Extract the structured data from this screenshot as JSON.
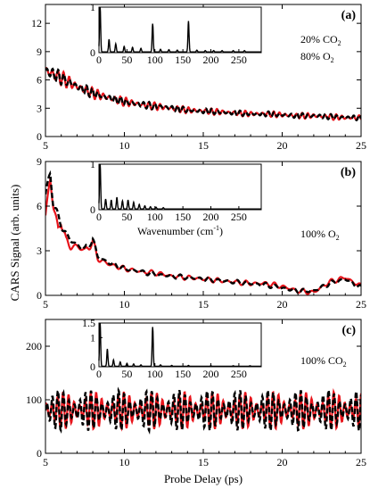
{
  "figure": {
    "xlabel": "Probe Delay (ps)",
    "ylabel": "CARS Signal (arb. units)",
    "colors": {
      "measured": "#e8141b",
      "simulated": "#000000",
      "inset": "#000000"
    }
  },
  "chart_data": [
    {
      "type": "line",
      "panel": "a",
      "panel_label": "(a)",
      "annotation_lines": [
        {
          "text": "20% CO",
          "sub": "2"
        },
        {
          "text": "80% O",
          "sub": "2"
        }
      ],
      "xlim": [
        5,
        25
      ],
      "ylim": [
        0,
        14
      ],
      "x_ticks": [
        "5",
        "10",
        "15",
        "20",
        "25"
      ],
      "y_ticks": [
        "0",
        "3",
        "6",
        "9",
        "12"
      ],
      "y_tick_values": [
        0,
        3,
        6,
        9,
        12
      ],
      "series": [
        {
          "role": "measured",
          "style": "solid-red",
          "x": [
            5,
            5.5,
            6,
            7,
            8,
            9,
            10,
            11,
            12,
            13,
            14,
            15,
            16,
            17,
            18,
            19,
            20,
            21,
            22,
            23,
            24,
            25
          ],
          "y": [
            7.0,
            6.6,
            6.2,
            5.3,
            4.6,
            4.1,
            3.7,
            3.4,
            3.2,
            3.0,
            2.8,
            2.7,
            2.6,
            2.5,
            2.4,
            2.4,
            2.3,
            2.2,
            2.2,
            2.1,
            2.0,
            2.0
          ],
          "osc_amplitude": 0.9,
          "osc_period_ps": 0.36
        },
        {
          "role": "simulated",
          "style": "dashed-black",
          "x": [
            5,
            5.5,
            6,
            7,
            8,
            9,
            10,
            11,
            12,
            13,
            14,
            15,
            16,
            17,
            18,
            19,
            20,
            21,
            22,
            23,
            24,
            25
          ],
          "y": [
            7.0,
            6.6,
            6.2,
            5.3,
            4.6,
            4.1,
            3.7,
            3.4,
            3.2,
            3.0,
            2.8,
            2.7,
            2.6,
            2.5,
            2.4,
            2.4,
            2.3,
            2.2,
            2.2,
            2.1,
            2.0,
            2.0
          ],
          "osc_amplitude": 0.8,
          "osc_period_ps": 0.36
        }
      ],
      "inset": {
        "xlim": [
          0,
          290
        ],
        "ylim": [
          0,
          1
        ],
        "x_ticks": [
          "0",
          "50",
          "100",
          "150",
          "200",
          "250"
        ],
        "x_tick_values": [
          0,
          50,
          100,
          150,
          200,
          250
        ],
        "y_ticks": [
          "0",
          "1"
        ],
        "y_tick_values": [
          0,
          1
        ],
        "xlabel": "",
        "peaks": [
          [
            2,
            1.0
          ],
          [
            18,
            0.28
          ],
          [
            30,
            0.18
          ],
          [
            45,
            0.12
          ],
          [
            60,
            0.1
          ],
          [
            75,
            0.08
          ],
          [
            96,
            0.62
          ],
          [
            110,
            0.06
          ],
          [
            125,
            0.05
          ],
          [
            140,
            0.04
          ],
          [
            160,
            0.68
          ],
          [
            175,
            0.04
          ],
          [
            190,
            0.03
          ],
          [
            205,
            0.03
          ],
          [
            220,
            0.03
          ],
          [
            240,
            0.03
          ],
          [
            260,
            0.03
          ]
        ]
      }
    },
    {
      "type": "line",
      "panel": "b",
      "panel_label": "(b)",
      "annotation_lines": [
        {
          "text": "100% O",
          "sub": "2"
        }
      ],
      "xlim": [
        5,
        25
      ],
      "ylim": [
        0,
        9
      ],
      "x_ticks": [
        "5",
        "10",
        "15",
        "20",
        "25"
      ],
      "y_ticks": [
        "0",
        "3",
        "6",
        "9"
      ],
      "y_tick_values": [
        0,
        3,
        6,
        9
      ],
      "series": [
        {
          "role": "measured",
          "style": "solid-red",
          "x": [
            5,
            5.3,
            5.5,
            5.8,
            6,
            6.3,
            6.6,
            7,
            7.5,
            8,
            8.3,
            9,
            10,
            11,
            12,
            13,
            14,
            15,
            16,
            17,
            18,
            19,
            20,
            21,
            22,
            23,
            24,
            25
          ],
          "y": [
            5.3,
            7.9,
            6.0,
            4.4,
            5.1,
            3.6,
            3.3,
            3.3,
            3.0,
            3.6,
            2.5,
            2.1,
            1.8,
            1.6,
            1.5,
            1.3,
            1.2,
            1.1,
            1.0,
            0.9,
            0.8,
            0.8,
            0.6,
            0.3,
            0.2,
            0.9,
            1.2,
            0.6
          ],
          "osc_amplitude": 0.5,
          "osc_period_ps": 0.6
        },
        {
          "role": "simulated",
          "style": "dashed-black",
          "x": [
            5,
            5.3,
            5.5,
            5.8,
            6,
            6.3,
            6.6,
            7,
            7.5,
            8,
            8.3,
            9,
            10,
            11,
            12,
            13,
            14,
            15,
            16,
            17,
            18,
            19,
            20,
            21,
            22,
            23,
            24,
            25
          ],
          "y": [
            6.8,
            8.2,
            6.2,
            5.2,
            4.8,
            4.1,
            3.7,
            3.4,
            3.1,
            3.8,
            2.6,
            2.2,
            1.8,
            1.6,
            1.4,
            1.3,
            1.2,
            1.1,
            1.0,
            0.9,
            0.8,
            0.7,
            0.5,
            0.3,
            0.3,
            0.8,
            1.1,
            0.5
          ],
          "osc_amplitude": 0.45,
          "osc_period_ps": 0.6
        }
      ],
      "inset": {
        "xlim": [
          0,
          290
        ],
        "ylim": [
          0,
          1
        ],
        "x_ticks": [
          "0",
          "50",
          "100",
          "150",
          "200",
          "250"
        ],
        "x_tick_values": [
          0,
          50,
          100,
          150,
          200,
          250
        ],
        "y_ticks": [
          "0",
          "1"
        ],
        "y_tick_values": [
          0,
          1
        ],
        "xlabel": "Wavenumber (cm",
        "xlabel_sup": "-1",
        "xlabel_tail": ")",
        "peaks": [
          [
            2,
            1.0
          ],
          [
            12,
            0.22
          ],
          [
            22,
            0.2
          ],
          [
            32,
            0.26
          ],
          [
            42,
            0.18
          ],
          [
            52,
            0.2
          ],
          [
            62,
            0.15
          ],
          [
            72,
            0.1
          ],
          [
            82,
            0.07
          ],
          [
            92,
            0.05
          ],
          [
            102,
            0.04
          ],
          [
            115,
            0.03
          ]
        ]
      }
    },
    {
      "type": "line",
      "panel": "c",
      "panel_label": "(c)",
      "annotation_lines": [
        {
          "text": "100% CO",
          "sub": "2"
        }
      ],
      "xlim": [
        5,
        25
      ],
      "ylim": [
        0,
        250
      ],
      "x_ticks": [
        "5",
        "10",
        "15",
        "20",
        "25"
      ],
      "y_ticks": [
        "0",
        "100",
        "200"
      ],
      "y_tick_values": [
        0,
        100,
        200
      ],
      "series": [
        {
          "role": "measured",
          "style": "solid-red",
          "x": [
            5,
            10,
            15,
            20,
            25
          ],
          "y": [
            80,
            80,
            80,
            80,
            80
          ],
          "osc_amplitude": 35,
          "osc_period_ps": 0.35
        },
        {
          "role": "simulated",
          "style": "dashed-black",
          "x": [
            5,
            10,
            15,
            20,
            25
          ],
          "y": [
            80,
            80,
            80,
            80,
            80
          ],
          "osc_amplitude": 38,
          "osc_period_ps": 0.35
        }
      ],
      "inset": {
        "xlim": [
          0,
          290
        ],
        "ylim": [
          0,
          1.5
        ],
        "x_ticks": [
          "0",
          "50",
          "100",
          "150",
          "200",
          "250"
        ],
        "x_tick_values": [
          0,
          50,
          100,
          150,
          200,
          250
        ],
        "y_ticks": [
          "0",
          "1",
          "1.5"
        ],
        "y_tick_values": [
          0,
          1,
          1.5
        ],
        "xlabel": "",
        "peaks": [
          [
            2,
            1.5
          ],
          [
            15,
            0.6
          ],
          [
            26,
            0.22
          ],
          [
            38,
            0.15
          ],
          [
            50,
            0.1
          ],
          [
            62,
            0.08
          ],
          [
            75,
            0.05
          ],
          [
            96,
            1.35
          ],
          [
            110,
            0.05
          ],
          [
            130,
            0.03
          ],
          [
            160,
            0.03
          ],
          [
            200,
            0.02
          ],
          [
            240,
            0.02
          ],
          [
            270,
            0.02
          ]
        ]
      }
    }
  ]
}
